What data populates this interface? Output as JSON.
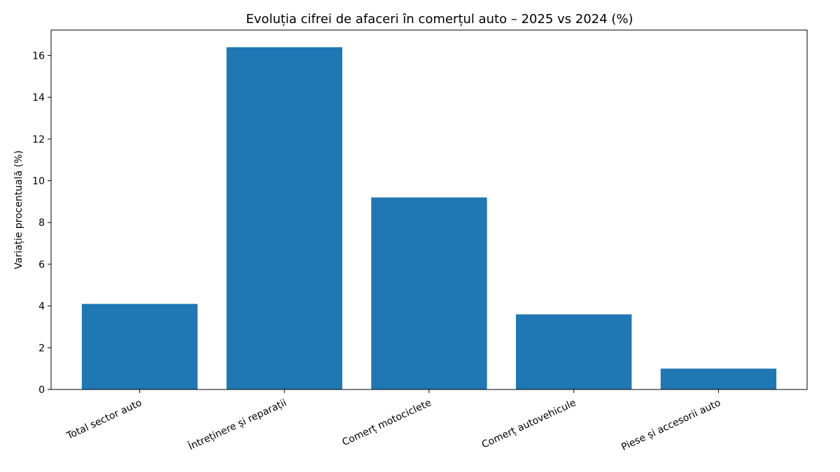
{
  "chart_data": {
    "type": "bar",
    "title": "Evoluția cifrei de afaceri în comerțul auto – 2025 vs 2024 (%)",
    "xlabel": "",
    "ylabel": "Variație procentuală (%)",
    "categories": [
      "Total sector auto",
      "Întreținere și reparații",
      "Comerț motociclete",
      "Comerț autovehicule",
      "Piese și accesorii auto"
    ],
    "values": [
      4.1,
      16.4,
      9.2,
      3.6,
      1.0
    ],
    "ylim": [
      0,
      17.22
    ],
    "yticks": [
      "0",
      "2",
      "4",
      "6",
      "8",
      "10",
      "12",
      "14",
      "16"
    ],
    "bar_color": "#1f77b4",
    "grid": false,
    "legend": "none"
  }
}
